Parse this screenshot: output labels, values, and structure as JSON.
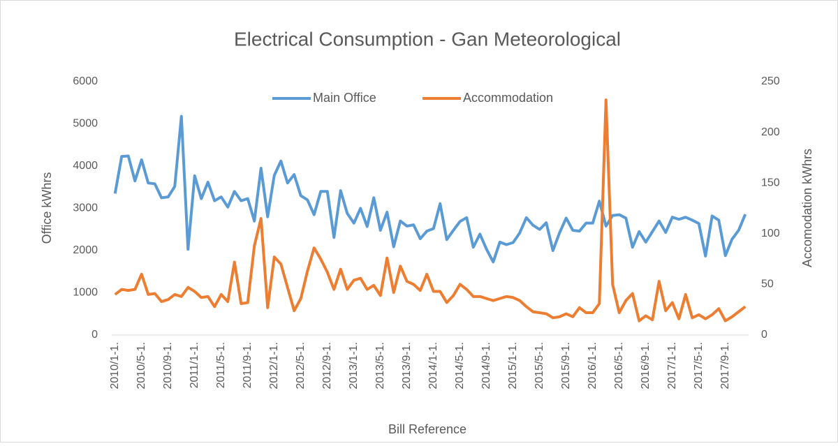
{
  "chart_data": {
    "type": "line",
    "title": "Electrical Consumption - Gan Meteorological",
    "x_label": "Bill Reference",
    "y_label": "Office kWhrs",
    "y2_label": "Accomodation kWhrs",
    "categories": [
      "2010/1-1.",
      null,
      null,
      null,
      "2010/5-1.",
      null,
      null,
      null,
      "2010/9-1.",
      null,
      null,
      null,
      "2011/1-1.",
      null,
      null,
      null,
      "2011/5-1.",
      null,
      null,
      null,
      "2011/9-1.",
      null,
      null,
      null,
      "2012/1-1.",
      null,
      null,
      null,
      "2012/5-1.",
      null,
      null,
      null,
      "2012/9-1.",
      null,
      null,
      null,
      "2013/1-1.",
      null,
      null,
      null,
      "2013/5-1.",
      null,
      null,
      null,
      "2013/9-1.",
      null,
      null,
      null,
      "2014/1-1.",
      null,
      null,
      null,
      "2014/5-1.",
      null,
      null,
      null,
      "2014/9-1.",
      null,
      null,
      null,
      "2015/1-1.",
      null,
      null,
      null,
      "2015/5-1.",
      null,
      null,
      null,
      "2015/9-1.",
      null,
      null,
      null,
      "2016/1-1.",
      null,
      null,
      null,
      "2016/5-1.",
      null,
      null,
      null,
      "2016/9-1.",
      null,
      null,
      null,
      "2017/1-1.",
      null,
      null,
      null,
      "2017/5-1.",
      null,
      null,
      null,
      "2017/9-1.",
      null,
      null,
      null
    ],
    "series": [
      {
        "name": "Main Office",
        "color": "#5b9bd5",
        "values": [
          3350,
          4230,
          4240,
          3650,
          4150,
          3600,
          3580,
          3250,
          3270,
          3520,
          5180,
          2030,
          3770,
          3230,
          3620,
          3180,
          3270,
          3030,
          3400,
          3180,
          3230,
          2700,
          3950,
          2800,
          3780,
          4120,
          3600,
          3800,
          3300,
          3200,
          2850,
          3400,
          3400,
          2310,
          3420,
          2880,
          2650,
          3000,
          2570,
          3250,
          2480,
          2910,
          2090,
          2700,
          2580,
          2610,
          2280,
          2460,
          2520,
          3110,
          2260,
          2480,
          2690,
          2780,
          2080,
          2390,
          2030,
          1730,
          2200,
          2140,
          2190,
          2420,
          2780,
          2600,
          2500,
          2660,
          2000,
          2420,
          2770,
          2480,
          2460,
          2650,
          2650,
          3170,
          2580,
          2830,
          2850,
          2770,
          2080,
          2450,
          2200,
          2450,
          2700,
          2430,
          2790,
          2740,
          2790,
          2720,
          2640,
          1870,
          2820,
          2720,
          1880,
          2270,
          2480,
          2860
        ]
      },
      {
        "name": "Accommodation",
        "color": "#ed7d31",
        "axis": "y2",
        "values": [
          40,
          45,
          44,
          45,
          60,
          40,
          41,
          33,
          35,
          40,
          38,
          47,
          43,
          37,
          38,
          28,
          40,
          33,
          72,
          31,
          32,
          88,
          115,
          27,
          77,
          70,
          47,
          24,
          36,
          63,
          86,
          75,
          62,
          45,
          65,
          45,
          54,
          56,
          45,
          49,
          39,
          76,
          42,
          68,
          53,
          50,
          44,
          60,
          43,
          43,
          32,
          39,
          50,
          45,
          38,
          38,
          36,
          34,
          36,
          38,
          37,
          34,
          28,
          23,
          22,
          21,
          17,
          18,
          21,
          18,
          27,
          22,
          22,
          31,
          232,
          50,
          22,
          34,
          41,
          14,
          19,
          15,
          53,
          24,
          32,
          16,
          40,
          17,
          20,
          16,
          20,
          26,
          14,
          18,
          23,
          28
        ]
      }
    ],
    "ylim": [
      0,
      6000
    ],
    "yticks": [
      0,
      1000,
      2000,
      3000,
      4000,
      5000,
      6000
    ],
    "y2lim": [
      0,
      250
    ],
    "y2ticks": [
      0,
      50,
      100,
      150,
      200,
      250
    ],
    "grid": false,
    "legend": "top"
  }
}
